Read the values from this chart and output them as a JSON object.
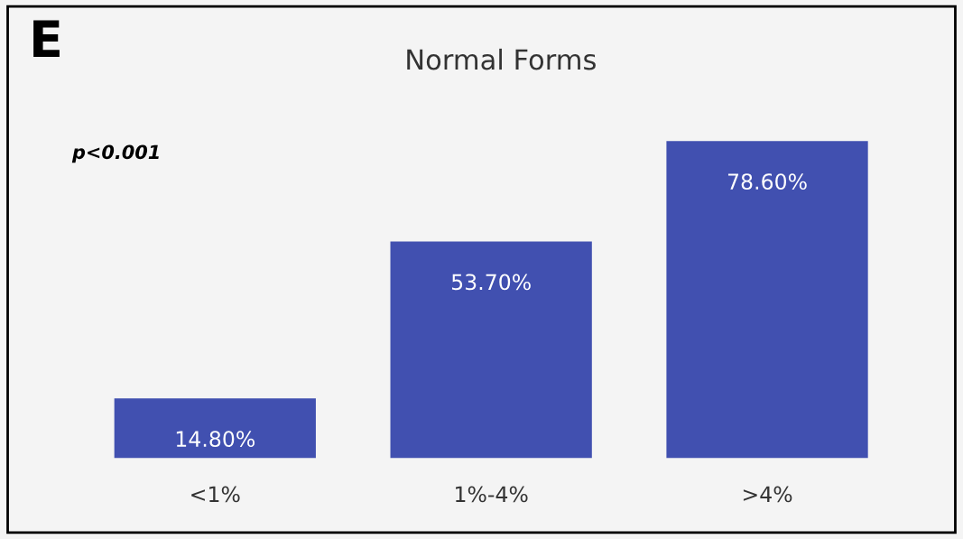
{
  "chart_data": {
    "type": "bar",
    "title": "Normal Forms",
    "categories": [
      "<1%",
      "1%-4%",
      ">4%"
    ],
    "values": [
      14.8,
      53.7,
      78.6
    ],
    "value_labels": [
      "14.80%",
      "53.70%",
      "78.60%"
    ],
    "color": "#4150b0",
    "annotations": [
      "E",
      "p<0.001"
    ]
  }
}
